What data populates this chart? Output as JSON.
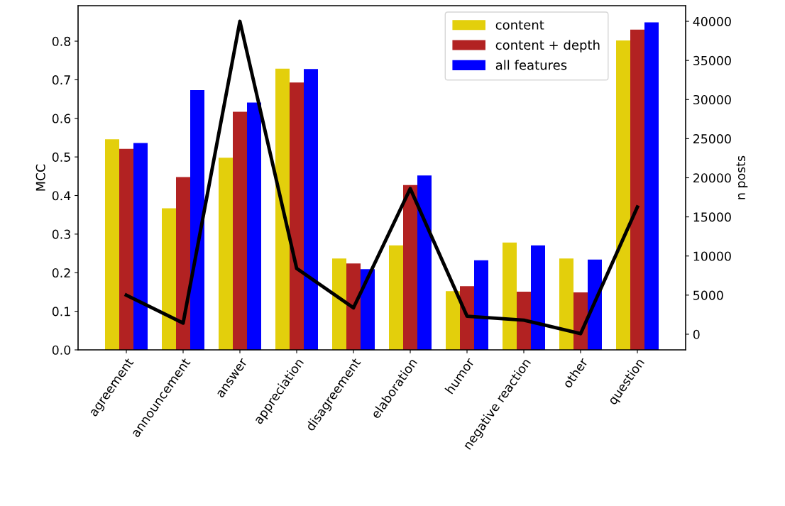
{
  "chart_data": {
    "type": "bar",
    "ylabel": "MCC",
    "y2label": "n posts",
    "categories": [
      "agreement",
      "announcement",
      "answer",
      "appreciation",
      "disagreement",
      "elaboration",
      "humor",
      "negative reaction",
      "other",
      "question"
    ],
    "series": [
      {
        "name": "content",
        "color": "#e3cf0c",
        "values": [
          0.546,
          0.367,
          0.498,
          0.729,
          0.237,
          0.271,
          0.152,
          0.278,
          0.237,
          0.802
        ]
      },
      {
        "name": "content + depth",
        "color": "#b22222",
        "values": [
          0.521,
          0.448,
          0.617,
          0.693,
          0.224,
          0.427,
          0.165,
          0.151,
          0.149,
          0.83
        ]
      },
      {
        "name": "all features",
        "color": "#0000ff",
        "values": [
          0.536,
          0.673,
          0.641,
          0.728,
          0.209,
          0.452,
          0.232,
          0.271,
          0.234,
          0.849
        ]
      },
      {
        "type": "line",
        "axis": "y2",
        "color": "#000000",
        "values": [
          5000,
          1420,
          40000,
          8400,
          3370,
          18620,
          2300,
          1800,
          70,
          16260
        ]
      }
    ],
    "ylim": [
      0,
      0.892
    ],
    "yticks": [
      {
        "value": 0,
        "label": "0.0"
      },
      0.1,
      0.2,
      0.3,
      0.4,
      0.5,
      0.6,
      0.7,
      0.8
    ],
    "y2lim": [
      -2000,
      42000
    ],
    "y2ticks": [
      0,
      5000,
      10000,
      15000,
      20000,
      25000,
      30000,
      35000,
      40000
    ],
    "legend": "top right",
    "grid": false
  }
}
